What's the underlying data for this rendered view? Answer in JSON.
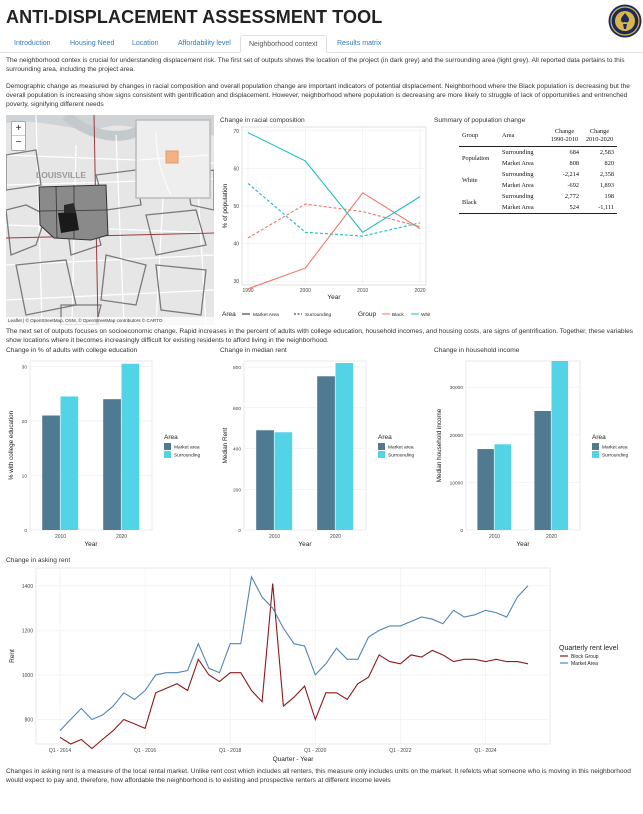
{
  "page_title": "ANTI-DISPLACEMENT ASSESSMENT TOOL",
  "tabs": [
    {
      "label": "Introduction",
      "active": false
    },
    {
      "label": "Housing Need",
      "active": false
    },
    {
      "label": "Location",
      "active": false
    },
    {
      "label": "Affordability level",
      "active": false
    },
    {
      "label": "Neighborhood context",
      "active": true
    },
    {
      "label": "Results matrix",
      "active": false
    }
  ],
  "intro_text_1": "The neighborhood contex is crucial for understanding displacement risk. The first set of outputs shows the location of the project (in dark grey) and the surrounding area (light grey). All reported data pertains to this surrounding area, including the project area.",
  "intro_text_2": "Demographic change as measured by changes in racial composition and overall population change are important indicators of potential displacement. Neighborhood where the Black population is decreasing but the overall population is increasing show signs consistent with gentrification and displacement. However, neighborhood where population is decreasing are more likely to struggle of lack of opportunities and entrenched poverty, signifying different needs",
  "map": {
    "zoom_in": "+",
    "zoom_out": "−",
    "city_label": "LOUISVILLE",
    "attribution": "Leaflet | © OpenStreetMap, OSM, © OpenStreetMap contributors © CARTO"
  },
  "racial": {
    "title": "Change in racial composition",
    "legend_area_label": "Area",
    "legend_market": "Market Area",
    "legend_surrounding": "Surrounding",
    "legend_group_label": "Group",
    "legend_black": "Black",
    "legend_white": "White",
    "colors": {
      "black": "#f0766b",
      "white": "#1bbcbf"
    }
  },
  "summary": {
    "title": "Summary of population change",
    "headers": [
      "Group",
      "Area",
      "Change 1990-2010",
      "Change 2010-2020"
    ],
    "rows": [
      {
        "group": "Population",
        "area": "Surrounding",
        "c1": "684",
        "c2": "2,583"
      },
      {
        "group": "",
        "area": "Market Area",
        "c1": "808",
        "c2": "820"
      },
      {
        "group": "White",
        "area": "Surrounding",
        "c1": "-2,214",
        "c2": "2,358"
      },
      {
        "group": "",
        "area": "Market Area",
        "c1": "-692",
        "c2": "1,893"
      },
      {
        "group": "Black",
        "area": "Surrounding",
        "c1": "2,772",
        "c2": "198"
      },
      {
        "group": "",
        "area": "Market Area",
        "c1": "524",
        "c2": "-1,111"
      }
    ]
  },
  "socio_text": "The next set of outputs focuses on socioeconomic change. Rapid increases in the percent of adults with college education, household incomes, and housing costs, are signs of gentrification. Together, these variables show locations where it becomes increasingly difficult for existing residents to afford living in the neighborhood.",
  "rent_text": "Changes in asking rent is a measure of the local rental market. Unlike rent cost which includes all renters, this measure only includes units on the market. It refelcts what someone who is moving in this neighborhood would expect to pay and, therefore, how affordable the neighborhood is to existing and prospective renters at different income levels",
  "chart_data": [
    {
      "type": "line",
      "title": "Change in racial composition",
      "xlabel": "Year",
      "ylabel": "% of population",
      "x": [
        1990,
        2000,
        2010,
        2020
      ],
      "xticks": [
        "1990",
        "2000",
        "2010",
        "2020"
      ],
      "yticks": [
        "30",
        "40",
        "50",
        "60",
        "70"
      ],
      "xlim": [
        1990,
        2020
      ],
      "ylim": [
        29,
        71
      ],
      "series": [
        {
          "name": "Black, Market Area",
          "group": "Black",
          "area": "Market Area",
          "values": [
            28,
            33.5,
            53.5,
            44
          ]
        },
        {
          "name": "Black, Surrounding",
          "group": "Black",
          "area": "Surrounding",
          "values": [
            41.5,
            50.5,
            48.5,
            44.5
          ]
        },
        {
          "name": "White, Market Area",
          "group": "White",
          "area": "Market Area",
          "values": [
            69.5,
            62,
            43,
            52.5
          ]
        },
        {
          "name": "White, Surrounding",
          "group": "White",
          "area": "Surrounding",
          "values": [
            56,
            43,
            42,
            45.5
          ]
        }
      ]
    },
    {
      "type": "bar",
      "title": "Change in % of adults with college education",
      "xlabel": "Year",
      "ylabel": "% with college education",
      "categories": [
        "2010",
        "2020"
      ],
      "yticks": [
        "0",
        "10",
        "20",
        "30"
      ],
      "ylim": [
        0,
        31
      ],
      "legend_title": "Area",
      "series": [
        {
          "name": "Market area",
          "values": [
            21,
            24
          ]
        },
        {
          "name": "Surrounding",
          "values": [
            24.5,
            30.5
          ]
        }
      ]
    },
    {
      "type": "bar",
      "title": "Change in median rent",
      "xlabel": "Year",
      "ylabel": "Median Rent",
      "categories": [
        "2010",
        "2020"
      ],
      "yticks": [
        "0",
        "200",
        "400",
        "600",
        "800"
      ],
      "ylim": [
        0,
        830
      ],
      "legend_title": "Area",
      "series": [
        {
          "name": "Market area",
          "values": [
            490,
            755
          ]
        },
        {
          "name": "Surrounding",
          "values": [
            480,
            820
          ]
        }
      ]
    },
    {
      "type": "bar",
      "title": "Change in household income",
      "xlabel": "Year",
      "ylabel": "Median household income",
      "categories": [
        "2010",
        "2020"
      ],
      "yticks": [
        "0",
        "10000",
        "20000",
        "30000"
      ],
      "ylim": [
        0,
        35500
      ],
      "legend_title": "Area",
      "series": [
        {
          "name": "Market area",
          "values": [
            17000,
            25000
          ]
        },
        {
          "name": "Surrounding",
          "values": [
            18000,
            35500
          ]
        }
      ]
    },
    {
      "type": "line",
      "title": "Change in asking rent",
      "xlabel": "Quarter - Year",
      "ylabel": "Rent",
      "xticks": [
        "Q1 - 2014",
        "Q1 - 2016",
        "Q1 - 2018",
        "Q1 - 2020",
        "Q1 - 2022",
        "Q1 - 2024"
      ],
      "yticks": [
        "800",
        "1000",
        "1200",
        "1400"
      ],
      "ylim": [
        690,
        1480
      ],
      "legend_title": "Quarterly rent level",
      "series": [
        {
          "name": "Block Group",
          "values": [
            720,
            690,
            710,
            670,
            710,
            750,
            800,
            780,
            760,
            920,
            940,
            960,
            930,
            1070,
            1000,
            970,
            1010,
            1010,
            930,
            880,
            1410,
            860,
            900,
            950,
            800,
            920,
            920,
            890,
            960,
            990,
            1090,
            1060,
            1050,
            1090,
            1080,
            1110,
            1090,
            1060,
            1070,
            1070,
            1060,
            1070,
            1060,
            1060,
            1050
          ]
        },
        {
          "name": "Market Area",
          "values": [
            750,
            800,
            850,
            800,
            820,
            860,
            920,
            890,
            930,
            1000,
            1010,
            1010,
            1020,
            1140,
            1030,
            1010,
            1140,
            1140,
            1440,
            1350,
            1300,
            1210,
            1140,
            1130,
            1000,
            1050,
            1120,
            1070,
            1070,
            1170,
            1200,
            1220,
            1220,
            1240,
            1260,
            1250,
            1230,
            1290,
            1260,
            1270,
            1290,
            1280,
            1260,
            1350,
            1400
          ]
        }
      ]
    }
  ]
}
